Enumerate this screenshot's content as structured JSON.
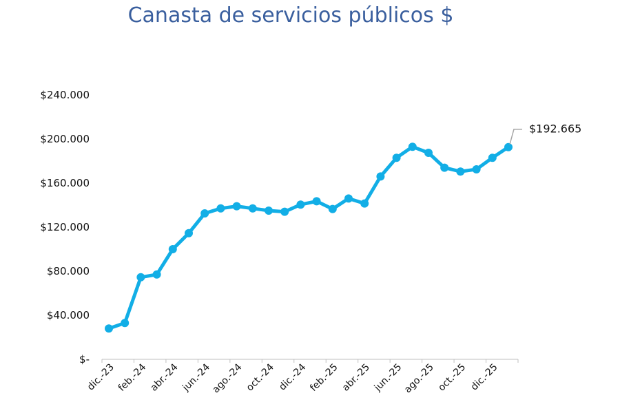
{
  "chart_data": {
    "type": "line",
    "title": "Canasta de servicios públicos $",
    "xlabel": "",
    "ylabel": "",
    "ylim": [
      0,
      240000
    ],
    "y_tick_labels": [
      "$-",
      "$40.000",
      "$80.000",
      "$120.000",
      "$160.000",
      "$200.000",
      "$240.000"
    ],
    "y_tick_values": [
      0,
      40000,
      80000,
      120000,
      160000,
      200000,
      240000
    ],
    "x_tick_labels": [
      "dic.-23",
      "feb.-24",
      "abr.-24",
      "jun.-24",
      "ago.-24",
      "oct.-24",
      "dic.-24",
      "feb.-25",
      "abr.-25",
      "jun.-25",
      "ago.-25",
      "oct.-25",
      "dic.-25"
    ],
    "x_tick_indices": [
      0,
      2,
      4,
      6,
      8,
      10,
      12,
      14,
      16,
      18,
      20,
      22,
      24
    ],
    "grid": false,
    "color": "#12aee6",
    "series": [
      {
        "name": "Canasta de servicios públicos",
        "values": [
          28000,
          33000,
          74500,
          77000,
          100000,
          114500,
          132500,
          137000,
          139000,
          137000,
          135000,
          134000,
          140500,
          143500,
          136500,
          146000,
          141500,
          166000,
          183000,
          193000,
          187500,
          174000,
          170500,
          172500,
          183000,
          192665
        ]
      }
    ],
    "annotation": {
      "index": 25,
      "label": "$192.665"
    }
  }
}
